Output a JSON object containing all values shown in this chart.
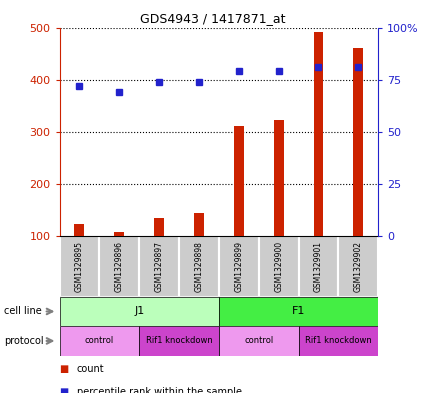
{
  "title": "GDS4943 / 1417871_at",
  "samples": [
    "GSM1329895",
    "GSM1329896",
    "GSM1329897",
    "GSM1329898",
    "GSM1329899",
    "GSM1329900",
    "GSM1329901",
    "GSM1329902"
  ],
  "counts": [
    122,
    108,
    135,
    143,
    310,
    323,
    492,
    460
  ],
  "percentiles": [
    72,
    69,
    74,
    74,
    79,
    79,
    81,
    81
  ],
  "ylim_left": [
    100,
    500
  ],
  "ylim_right": [
    0,
    100
  ],
  "yticks_left": [
    100,
    200,
    300,
    400,
    500
  ],
  "yticks_right": [
    0,
    25,
    50,
    75,
    100
  ],
  "ytick_labels_right": [
    "0",
    "25",
    "50",
    "75",
    "100%"
  ],
  "bar_color": "#cc2200",
  "dot_color": "#2222cc",
  "cell_line_groups": [
    {
      "label": "J1",
      "start": 0,
      "end": 4,
      "color": "#bbffbb"
    },
    {
      "label": "F1",
      "start": 4,
      "end": 8,
      "color": "#44ee44"
    }
  ],
  "protocol_groups": [
    {
      "label": "control",
      "start": 0,
      "end": 2,
      "color": "#ee99ee"
    },
    {
      "label": "Rif1 knockdown",
      "start": 2,
      "end": 4,
      "color": "#cc44cc"
    },
    {
      "label": "control",
      "start": 4,
      "end": 6,
      "color": "#ee99ee"
    },
    {
      "label": "Rif1 knockdown",
      "start": 6,
      "end": 8,
      "color": "#cc44cc"
    }
  ],
  "legend_items": [
    {
      "label": "count",
      "color": "#cc2200"
    },
    {
      "label": "percentile rank within the sample",
      "color": "#2222cc"
    }
  ],
  "left_axis_color": "#cc2200",
  "right_axis_color": "#2222cc",
  "grid_color": "black",
  "bg_color": "white",
  "sample_box_color": "#cccccc",
  "bar_width": 0.25
}
